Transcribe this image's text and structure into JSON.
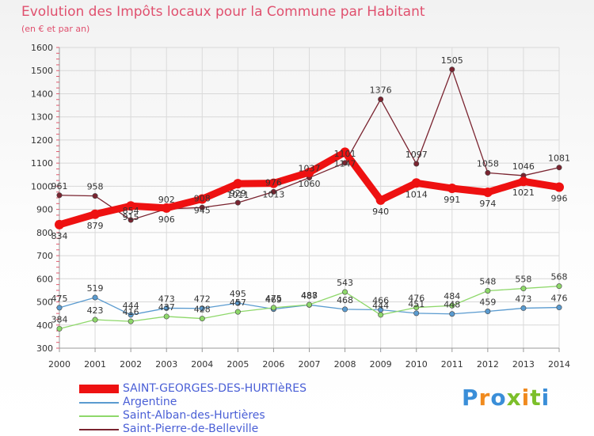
{
  "title": "Evolution des Impôts locaux pour la Commune par Habitant",
  "subtitle": "(en € et par an)",
  "brand": {
    "letters": [
      {
        "ch": "P",
        "color": "#3a8ed8"
      },
      {
        "ch": "r",
        "color": "#f08a1e"
      },
      {
        "ch": "o",
        "color": "#3a8ed8"
      },
      {
        "ch": "x",
        "color": "#7cbf2a"
      },
      {
        "ch": "i",
        "color": "#f08a1e"
      },
      {
        "ch": "t",
        "color": "#7cbf2a"
      },
      {
        "ch": "i",
        "color": "#3a8ed8"
      }
    ]
  },
  "chart_data": {
    "type": "line",
    "title": "Evolution des Impôts locaux pour la Commune par Habitant",
    "ylabel": "(en € et par an)",
    "xlabel": "",
    "ylim": [
      300,
      1600
    ],
    "yticks": [
      "300",
      "400",
      "500",
      "600",
      "700",
      "800",
      "900",
      "1000",
      "1100",
      "1200",
      "1300",
      "1400",
      "1500",
      "1600"
    ],
    "categories": [
      "2000",
      "2001",
      "2002",
      "2003",
      "2004",
      "2005",
      "2006",
      "2007",
      "2008",
      "2009",
      "2010",
      "2011",
      "2012",
      "2013",
      "2014"
    ],
    "grid": true,
    "series": [
      {
        "name": "SAINT-GEORGES-DES-HURTIèRES",
        "color": "#ee1111",
        "thick": true,
        "label_pos": "below",
        "values": [
          834,
          879,
          915,
          906,
          945,
          1011,
          1013,
          1060,
          1147,
          940,
          1014,
          991,
          974,
          1021,
          996
        ],
        "labels": [
          "834",
          "879",
          "915",
          "906",
          "945",
          "1011",
          "1013",
          "1060",
          "1147",
          "940",
          "1014",
          "991",
          "974",
          "1021",
          "996"
        ]
      },
      {
        "name": "Argentine",
        "color": "#5a9bd0",
        "thick": false,
        "label_pos": "above",
        "values": [
          475,
          519,
          444,
          473,
          472,
          495,
          469,
          487,
          468,
          466,
          451,
          448,
          459,
          473,
          476
        ],
        "labels": [
          "475",
          "519",
          "444",
          "473",
          "472",
          "495",
          "469",
          "487",
          "468",
          "466",
          "451",
          "448",
          "459",
          "473",
          "476"
        ]
      },
      {
        "name": "Saint-Alban-des-Hurtières",
        "color": "#8ed86a",
        "thick": false,
        "label_pos": "above",
        "values": [
          384,
          423,
          416,
          437,
          428,
          457,
          475,
          488,
          543,
          444,
          476,
          484,
          548,
          558,
          568
        ],
        "labels": [
          "384",
          "423",
          "416",
          "437",
          "428",
          "457",
          "475",
          "488",
          "543",
          "444",
          "476",
          "484",
          "548",
          "558",
          "568"
        ]
      },
      {
        "name": "Saint-Pierre-de-Belleville",
        "color": "#7a2430",
        "thick": false,
        "label_pos": "above",
        "values": [
          961,
          958,
          854,
          902,
          908,
          929,
          976,
          1037,
          1101,
          1376,
          1097,
          1505,
          1058,
          1046,
          1081
        ],
        "labels": [
          "961",
          "958",
          "854",
          "902",
          "908",
          "929",
          "976",
          "1037",
          "1101",
          "1376",
          "1097",
          "1505",
          "1058",
          "1046",
          "1081"
        ]
      }
    ]
  }
}
